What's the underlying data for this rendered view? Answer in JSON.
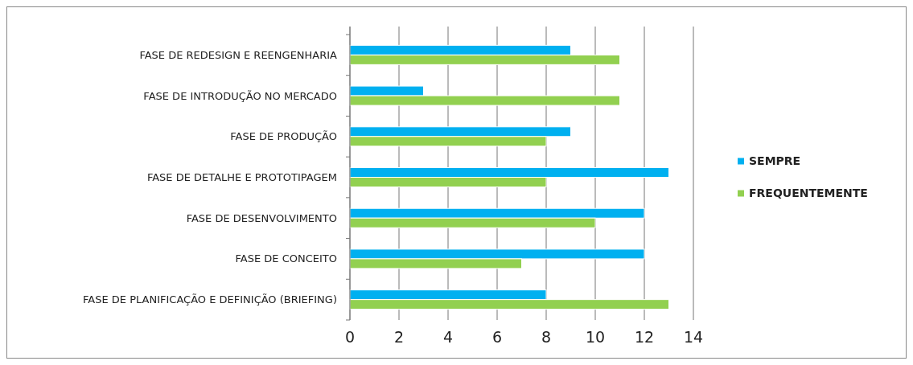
{
  "chart_data": {
    "type": "bar",
    "orientation": "horizontal",
    "categories": [
      "FASE DE REDESIGN E REENGENHARIA",
      "FASE DE INTRODUÇÃO NO MERCADO",
      "FASE DE PRODUÇÃO",
      "FASE DE DETALHE E PROTOTIPAGEM",
      "FASE DE DESENVOLVIMENTO",
      "FASE DE CONCEITO",
      "FASE DE PLANIFICAÇÃO E DEFINIÇÃO (BRIEFING)"
    ],
    "series": [
      {
        "name": "SEMPRE",
        "color": "#00b0f0",
        "values": [
          9,
          3,
          9,
          13,
          12,
          12,
          8
        ]
      },
      {
        "name": "FREQUENTEMENTE",
        "color": "#92d050",
        "values": [
          11,
          11,
          8,
          8,
          10,
          7,
          13
        ]
      }
    ],
    "xlim": [
      0,
      14
    ],
    "xticks": [
      0,
      2,
      4,
      6,
      8,
      10,
      12,
      14
    ],
    "grid": "x",
    "legend": "right"
  }
}
